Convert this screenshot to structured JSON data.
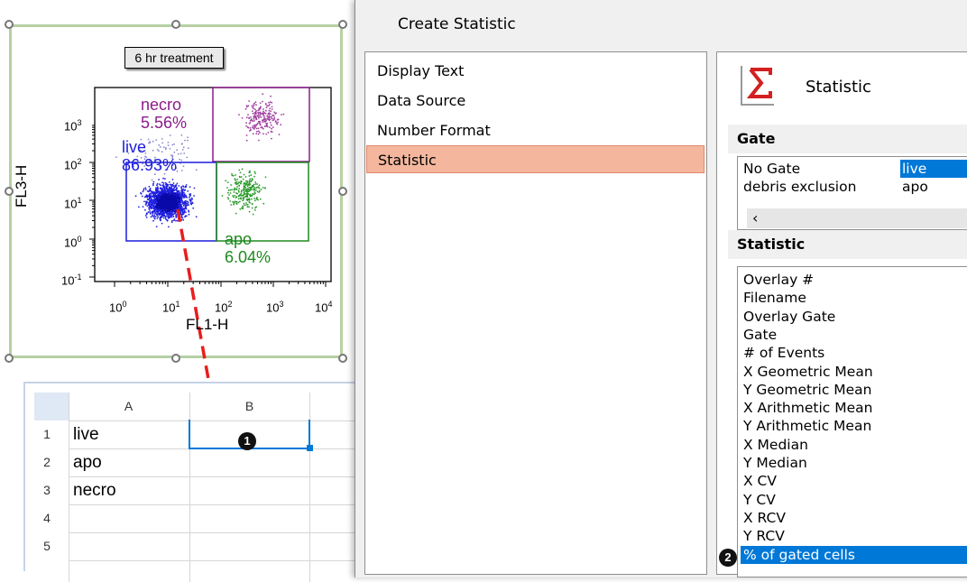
{
  "plot": {
    "title": "6 hr treatment",
    "x_axis_label": "FL1-H",
    "y_axis_label": "FL3-H",
    "x_ticks": [
      "0",
      "1",
      "2",
      "3",
      "4"
    ],
    "y_ticks": [
      "-1",
      "0",
      "1",
      "2",
      "3"
    ],
    "tick_base": "10",
    "gates": [
      {
        "name": "necro",
        "percent": "5.56%",
        "color": "#8b1c8b"
      },
      {
        "name": "live",
        "percent": "86.93%",
        "color": "#1c1cdc"
      },
      {
        "name": "apo",
        "percent": "6.04%",
        "color": "#1e8a1e"
      }
    ]
  },
  "sheet": {
    "columns": [
      "A",
      "B"
    ],
    "rows": [
      {
        "num": "1",
        "a": "live",
        "b": ""
      },
      {
        "num": "2",
        "a": "apo",
        "b": ""
      },
      {
        "num": "3",
        "a": "necro",
        "b": ""
      },
      {
        "num": "4",
        "a": "",
        "b": ""
      },
      {
        "num": "5",
        "a": "",
        "b": ""
      }
    ]
  },
  "badges": {
    "one": "1",
    "two": "2"
  },
  "dialog": {
    "title": "Create Statistic",
    "nav": [
      {
        "label": "Display Text",
        "selected": false
      },
      {
        "label": "Data Source",
        "selected": false
      },
      {
        "label": "Number Format",
        "selected": false
      },
      {
        "label": "Statistic",
        "selected": true
      }
    ],
    "panel_heading": "Statistic",
    "gate_section": "Gate",
    "gate_rows": [
      {
        "left": "No Gate",
        "right": "live",
        "right_selected": true
      },
      {
        "left": "debris exclusion",
        "right": "apo",
        "right_selected": false
      }
    ],
    "statistic_section": "Statistic",
    "statistic_items": [
      "Overlay #",
      "Filename",
      "Overlay Gate",
      "Gate",
      "# of Events",
      "X Geometric Mean",
      "Y Geometric Mean",
      "X Arithmetic Mean",
      "Y Arithmetic Mean",
      "X Median",
      "Y Median",
      "X CV",
      "Y CV",
      "X RCV",
      "Y RCV",
      "% of gated cells"
    ],
    "selected_statistic": "% of gated cells"
  },
  "colors": {
    "accent": "#0078d7",
    "nav_selected": "#f4b79e",
    "arrow": "#e81e1e"
  }
}
